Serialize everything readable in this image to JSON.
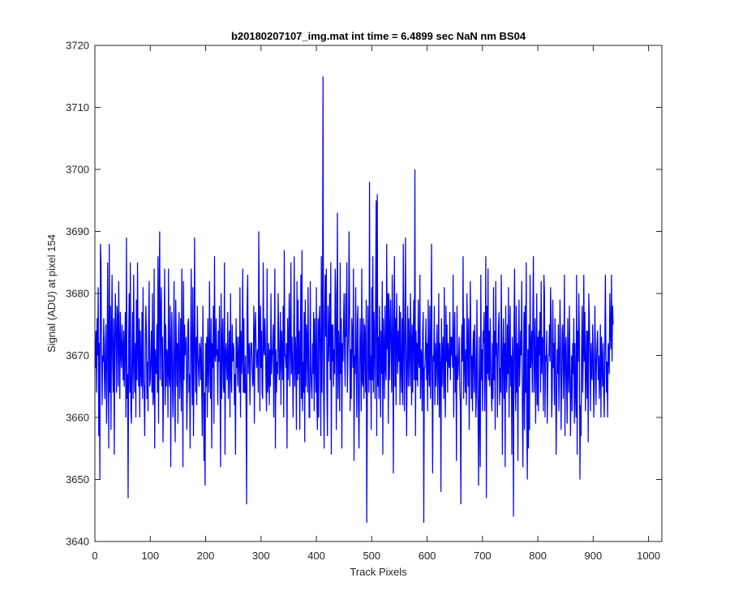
{
  "chart_data": {
    "type": "line",
    "title": "b20180207107_img.mat int time = 6.4899 sec  NaN nm BS04",
    "xlabel": "Track Pixels",
    "ylabel": "Signal (ADU) at pixel 154",
    "xlim": [
      0,
      1024
    ],
    "ylim": [
      3640,
      3720
    ],
    "xticks": [
      0,
      100,
      200,
      300,
      400,
      500,
      600,
      700,
      800,
      900,
      1000
    ],
    "yticks": [
      3640,
      3650,
      3660,
      3670,
      3680,
      3690,
      3700,
      3710,
      3720
    ],
    "grid": false,
    "legend": "none",
    "line_color": "#0000ff",
    "series": [
      {
        "x_start": 1,
        "x_step": 1,
        "values": [
          3668,
          3674,
          3664,
          3676,
          3670,
          3681,
          3657,
          3672,
          3650,
          3688,
          3685,
          3671,
          3662,
          3670,
          3669,
          3676,
          3667,
          3663,
          3672,
          3675,
          3659,
          3665,
          3685,
          3672,
          3655,
          3688,
          3664,
          3678,
          3658,
          3673,
          3683,
          3669,
          3664,
          3676,
          3654,
          3672,
          3680,
          3673,
          3664,
          3678,
          3676,
          3665,
          3682,
          3672,
          3663,
          3677,
          3670,
          3668,
          3675,
          3671,
          3666,
          3674,
          3665,
          3672,
          3677,
          3660,
          3689,
          3663,
          3667,
          3647,
          3673,
          3680,
          3664,
          3685,
          3661,
          3659,
          3670,
          3677,
          3663,
          3683,
          3670,
          3664,
          3672,
          3660,
          3679,
          3666,
          3685,
          3671,
          3665,
          3676,
          3660,
          3674,
          3668,
          3665,
          3677,
          3663,
          3681,
          3666,
          3664,
          3657,
          3671,
          3678,
          3674,
          3663,
          3669,
          3661,
          3675,
          3682,
          3665,
          3666,
          3670,
          3674,
          3664,
          3680,
          3662,
          3664,
          3684,
          3655,
          3671,
          3668,
          3667,
          3675,
          3664,
          3686,
          3659,
          3679,
          3690,
          3666,
          3676,
          3681,
          3665,
          3673,
          3656,
          3664,
          3673,
          3684,
          3662,
          3675,
          3665,
          3671,
          3670,
          3660,
          3684,
          3667,
          3665,
          3678,
          3652,
          3671,
          3677,
          3666,
          3660,
          3670,
          3682,
          3664,
          3656,
          3679,
          3673,
          3665,
          3672,
          3659,
          3674,
          3677,
          3663,
          3668,
          3676,
          3661,
          3684,
          3670,
          3652,
          3682,
          3666,
          3675,
          3670,
          3671,
          3673,
          3658,
          3664,
          3675,
          3676,
          3664,
          3667,
          3655,
          3673,
          3684,
          3668,
          3662,
          3681,
          3657,
          3668,
          3689,
          3671,
          3664,
          3673,
          3662,
          3678,
          3670,
          3668,
          3665,
          3672,
          3671,
          3666,
          3673,
          3664,
          3657,
          3678,
          3669,
          3653,
          3664,
          3649,
          3672,
          3665,
          3673,
          3660,
          3676,
          3669,
          3664,
          3682,
          3670,
          3663,
          3676,
          3655,
          3672,
          3668,
          3678,
          3659,
          3686,
          3670,
          3669,
          3676,
          3670,
          3671,
          3662,
          3674,
          3669,
          3678,
          3665,
          3652,
          3680,
          3663,
          3672,
          3676,
          3665,
          3664,
          3685,
          3654,
          3670,
          3672,
          3668,
          3666,
          3677,
          3663,
          3669,
          3674,
          3660,
          3680,
          3667,
          3664,
          3675,
          3669,
          3672,
          3671,
          3662,
          3667,
          3654,
          3676,
          3668,
          3673,
          3665,
          3670,
          3673,
          3664,
          3681,
          3660,
          3674,
          3667,
          3670,
          3684,
          3664,
          3676,
          3664,
          3664,
          3670,
          3662,
          3646,
          3678,
          3683,
          3667,
          3671,
          3672,
          3662,
          3669,
          3672,
          3672,
          3668,
          3665,
          3666,
          3678,
          3659,
          3674,
          3677,
          3672,
          3668,
          3670,
          3671,
          3664,
          3690,
          3676,
          3661,
          3678,
          3668,
          3674,
          3664,
          3663,
          3685,
          3671,
          3670,
          3676,
          3672,
          3665,
          3661,
          3684,
          3664,
          3666,
          3672,
          3662,
          3671,
          3665,
          3680,
          3667,
          3670,
          3671,
          3675,
          3660,
          3671,
          3684,
          3655,
          3671,
          3664,
          3669,
          3667,
          3680,
          3673,
          3666,
          3669,
          3677,
          3662,
          3674,
          3671,
          3666,
          3678,
          3660,
          3687,
          3670,
          3670,
          3668,
          3672,
          3655,
          3676,
          3666,
          3673,
          3680,
          3665,
          3671,
          3685,
          3667,
          3673,
          3668,
          3660,
          3672,
          3686,
          3665,
          3673,
          3670,
          3658,
          3682,
          3666,
          3679,
          3667,
          3674,
          3658,
          3670,
          3683,
          3663,
          3687,
          3661,
          3669,
          3664,
          3677,
          3656,
          3679,
          3665,
          3675,
          3673,
          3664,
          3681,
          3669,
          3660,
          3660,
          3682,
          3668,
          3665,
          3663,
          3672,
          3667,
          3677,
          3661,
          3676,
          3669,
          3664,
          3681,
          3662,
          3658,
          3676,
          3660,
          3675,
          3678,
          3670,
          3657,
          3686,
          3664,
          3675,
          3715,
          3665,
          3655,
          3676,
          3683,
          3673,
          3684,
          3664,
          3657,
          3678,
          3669,
          3673,
          3680,
          3666,
          3685,
          3654,
          3675,
          3669,
          3675,
          3665,
          3671,
          3667,
          3684,
          3680,
          3658,
          3672,
          3693,
          3663,
          3674,
          3670,
          3661,
          3685,
          3667,
          3676,
          3655,
          3672,
          3669,
          3675,
          3680,
          3670,
          3665,
          3680,
          3673,
          3685,
          3664,
          3670,
          3674,
          3690,
          3678,
          3661,
          3671,
          3663,
          3676,
          3673,
          3668,
          3684,
          3653,
          3670,
          3667,
          3681,
          3670,
          3660,
          3675,
          3678,
          3662,
          3655,
          3668,
          3676,
          3670,
          3661,
          3684,
          3666,
          3665,
          3676,
          3663,
          3675,
          3673,
          3664,
          3679,
          3643,
          3662,
          3678,
          3670,
          3664,
          3698,
          3666,
          3670,
          3658,
          3681,
          3666,
          3686,
          3664,
          3677,
          3672,
          3663,
          3680,
          3695,
          3657,
          3696,
          3665,
          3673,
          3663,
          3678,
          3671,
          3660,
          3674,
          3667,
          3682,
          3654,
          3676,
          3671,
          3663,
          3678,
          3668,
          3666,
          3688,
          3671,
          3680,
          3659,
          3680,
          3666,
          3674,
          3679,
          3670,
          3664,
          3683,
          3673,
          3651,
          3676,
          3686,
          3665,
          3676,
          3662,
          3680,
          3672,
          3667,
          3674,
          3669,
          3678,
          3662,
          3677,
          3668,
          3664,
          3676,
          3662,
          3688,
          3672,
          3661,
          3675,
          3689,
          3668,
          3657,
          3670,
          3678,
          3665,
          3676,
          3671,
          3665,
          3680,
          3672,
          3662,
          3675,
          3664,
          3673,
          3679,
          3666,
          3700,
          3657,
          3674,
          3666,
          3672,
          3665,
          3679,
          3669,
          3668,
          3683,
          3663,
          3671,
          3670,
          3661,
          3674,
          3677,
          3643,
          3668,
          3668,
          3671,
          3676,
          3666,
          3672,
          3661,
          3679,
          3668,
          3665,
          3678,
          3663,
          3671,
          3688,
          3667,
          3651,
          3670,
          3669,
          3678,
          3662,
          3672,
          3665,
          3670,
          3675,
          3662,
          3668,
          3680,
          3660,
          3672,
          3668,
          3648,
          3676,
          3665,
          3671,
          3673,
          3663,
          3681,
          3666,
          3660,
          3678,
          3669,
          3675,
          3664,
          3672,
          3669,
          3668,
          3677,
          3666,
          3673,
          3670,
          3673,
          3668,
          3683,
          3660,
          3672,
          3677,
          3664,
          3670,
          3653,
          3678,
          3666,
          3667,
          3670,
          3673,
          3665,
          3662,
          3646,
          3672,
          3675,
          3669,
          3686,
          3663,
          3676,
          3669,
          3664,
          3671,
          3662,
          3680,
          3672,
          3665,
          3676,
          3658,
          3668,
          3682,
          3672,
          3663,
          3670,
          3661,
          3672,
          3674,
          3664,
          3675,
          3670,
          3660,
          3664,
          3679,
          3667,
          3660,
          3649,
          3673,
          3660,
          3652,
          3683,
          3666,
          3671,
          3661,
          3674,
          3672,
          3677,
          3661,
          3670,
          3686,
          3647,
          3678,
          3667,
          3684,
          3666,
          3674,
          3665,
          3676,
          3669,
          3664,
          3661,
          3672,
          3663,
          3681,
          3666,
          3674,
          3658,
          3682,
          3670,
          3672,
          3660,
          3669,
          3675,
          3677,
          3662,
          3668,
          3664,
          3683,
          3671,
          3654,
          3671,
          3676,
          3663,
          3672,
          3652,
          3678,
          3668,
          3664,
          3675,
          3667,
          3681,
          3660,
          3670,
          3678,
          3665,
          3670,
          3654,
          3673,
          3669,
          3644,
          3675,
          3684,
          3666,
          3661,
          3678,
          3664,
          3672,
          3653,
          3671,
          3679,
          3665,
          3669,
          3674,
          3670,
          3682,
          3662,
          3652,
          3666,
          3677,
          3658,
          3678,
          3664,
          3685,
          3660,
          3650,
          3671,
          3655,
          3675,
          3658,
          3683,
          3668,
          3670,
          3674,
          3664,
          3677,
          3686,
          3664,
          3670,
          3676,
          3659,
          3668,
          3680,
          3662,
          3673,
          3661,
          3674,
          3670,
          3677,
          3664,
          3682,
          3667,
          3673,
          3672,
          3661,
          3683,
          3680,
          3660,
          3670,
          3669,
          3674,
          3659,
          3667,
          3670,
          3670,
          3675,
          3669,
          3681,
          3675,
          3660,
          3664,
          3679,
          3668,
          3672,
          3662,
          3676,
          3670,
          3654,
          3662,
          3671,
          3667,
          3675,
          3661,
          3668,
          3679,
          3672,
          3658,
          3666,
          3674,
          3675,
          3663,
          3669,
          3683,
          3657,
          3671,
          3673,
          3665,
          3659,
          3676,
          3668,
          3664,
          3678,
          3669,
          3657,
          3665,
          3670,
          3661,
          3672,
          3667,
          3676,
          3659,
          3672,
          3664,
          3660,
          3683,
          3654,
          3674,
          3669,
          3680,
          3673,
          3650,
          3662,
          3657,
          3671,
          3678,
          3664,
          3670,
          3683,
          3669,
          3677,
          3661,
          3668,
          3674,
          3663,
          3674,
          3656,
          3680,
          3676,
          3670,
          3661,
          3672,
          3667,
          3666,
          3675,
          3670,
          3660,
          3665,
          3678,
          3671,
          3662,
          3669,
          3672,
          3674,
          3666,
          3670,
          3663,
          3667,
          3675,
          3660,
          3673,
          3669,
          3665,
          3672,
          3664,
          3660,
          3672,
          3683,
          3670,
          3664,
          3669,
          3660,
          3672,
          3671,
          3667,
          3680,
          3674,
          3671,
          3683,
          3669,
          3678,
          3675
        ]
      }
    ]
  }
}
